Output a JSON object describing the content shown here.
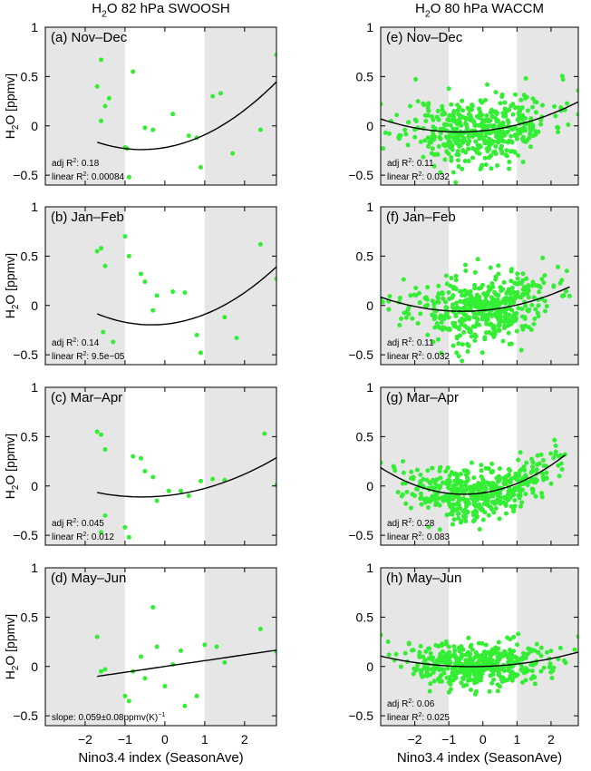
{
  "columns": [
    {
      "title_main": "H",
      "title_sub": "2",
      "title_rest": "O 82 hPa SWOOSH"
    },
    {
      "title_main": "H",
      "title_sub": "2",
      "title_rest": "O 80 hPa WACCM"
    }
  ],
  "ylabel_main": "H",
  "ylabel_sub": "2",
  "ylabel_rest": "O [ppmv]",
  "xlabel": "Nino3.4 index (SeasonAve)",
  "chart_data": [
    {
      "type": "scatter",
      "label": "(a) Nov–Dec",
      "xlim": [
        -3,
        2.8
      ],
      "ylim": [
        -0.6,
        1
      ],
      "xticks": [
        -2,
        -1,
        0,
        1,
        2
      ],
      "yticks": [
        -0.5,
        0,
        0.5,
        1
      ],
      "shade": [
        [
          -3,
          -1
        ],
        [
          1,
          2.8
        ]
      ],
      "fit": {
        "a": 0.06,
        "b": 0.07,
        "c": -0.22
      },
      "annotations": [
        {
          "text": "adj R",
          "sup": "2",
          "rest": ": 0.18"
        },
        {
          "text": "linear R",
          "sup": "2",
          "rest": ": 0.00084"
        }
      ],
      "points": [
        [
          -1.6,
          0.67
        ],
        [
          -1.7,
          0.4
        ],
        [
          -1.5,
          0.2
        ],
        [
          -1.6,
          0.05
        ],
        [
          -1.4,
          0.28
        ],
        [
          -1.0,
          -0.22
        ],
        [
          -0.95,
          -0.23
        ],
        [
          -0.9,
          -0.52
        ],
        [
          -0.8,
          0.55
        ],
        [
          -0.5,
          -0.02
        ],
        [
          -0.3,
          -0.04
        ],
        [
          0.2,
          0.12
        ],
        [
          0.6,
          -0.1
        ],
        [
          0.8,
          -0.12
        ],
        [
          0.9,
          -0.42
        ],
        [
          1.2,
          0.3
        ],
        [
          1.4,
          0.33
        ],
        [
          1.7,
          -0.28
        ],
        [
          2.4,
          -0.04
        ],
        [
          2.8,
          0.72
        ]
      ]
    },
    {
      "type": "scatter",
      "label": "(e) Nov–Dec",
      "xlim": [
        -3,
        2.8
      ],
      "ylim": [
        -0.6,
        1
      ],
      "xticks": [
        -2,
        -1,
        0,
        1,
        2
      ],
      "yticks": [
        -0.5,
        0,
        0.5,
        1
      ],
      "shade": [
        [
          -3,
          -1
        ],
        [
          1,
          2.8
        ]
      ],
      "fit": {
        "a": 0.025,
        "b": 0.035,
        "c": -0.05
      },
      "annotations": [
        {
          "text": "adj R",
          "sup": "2",
          "rest": ": 0.11"
        },
        {
          "text": "linear R",
          "sup": "2",
          "rest": ": 0.032"
        }
      ],
      "cloud": {
        "n": 480,
        "seed": 11,
        "sigma": 0.17,
        "curve": {
          "a": 0.025,
          "b": 0.035,
          "c": -0.05
        }
      }
    },
    {
      "type": "scatter",
      "label": "(b) Jan–Feb",
      "xlim": [
        -3,
        2.8
      ],
      "ylim": [
        -0.6,
        1
      ],
      "xticks": [
        -2,
        -1,
        0,
        1,
        2
      ],
      "yticks": [
        -0.5,
        0,
        0.5,
        1
      ],
      "shade": [
        [
          -3,
          -1
        ],
        [
          1,
          2.8
        ]
      ],
      "fit": {
        "a": 0.06,
        "b": 0.04,
        "c": -0.19
      },
      "annotations": [
        {
          "text": "adj R",
          "sup": "2",
          "rest": ": 0.14"
        },
        {
          "text": "linear R",
          "sup": "2",
          "rest": ": 9.5e−05"
        }
      ],
      "points": [
        [
          -1.7,
          0.55
        ],
        [
          -1.6,
          0.58
        ],
        [
          -1.5,
          0.4
        ],
        [
          -1.55,
          -0.27
        ],
        [
          -1.3,
          -0.37
        ],
        [
          -1.0,
          0.7
        ],
        [
          -0.9,
          0.5
        ],
        [
          -0.6,
          0.32
        ],
        [
          -0.5,
          0.24
        ],
        [
          -0.3,
          -0.05
        ],
        [
          -0.2,
          0.1
        ],
        [
          0.2,
          0.14
        ],
        [
          0.5,
          0.13
        ],
        [
          0.8,
          -0.3
        ],
        [
          0.9,
          -0.48
        ],
        [
          1.5,
          -0.12
        ],
        [
          1.8,
          -0.33
        ],
        [
          2.4,
          0.62
        ],
        [
          2.8,
          0.27
        ]
      ]
    },
    {
      "type": "scatter",
      "label": "(f) Jan–Feb",
      "xlim": [
        -3,
        2.8
      ],
      "ylim": [
        -0.6,
        1
      ],
      "xticks": [
        -2,
        -1,
        0,
        1,
        2
      ],
      "yticks": [
        -0.5,
        0,
        0.5,
        1
      ],
      "shade": [
        [
          -3,
          -1
        ],
        [
          1,
          2.8
        ]
      ],
      "fit": {
        "a": 0.025,
        "b": 0.03,
        "c": -0.05
      },
      "annotations": [
        {
          "text": "adj R",
          "sup": "2",
          "rest": ": 0.11"
        },
        {
          "text": "linear R",
          "sup": "2",
          "rest": ": 0.032"
        }
      ],
      "cloud": {
        "n": 480,
        "seed": 23,
        "sigma": 0.17,
        "curve": {
          "a": 0.025,
          "b": 0.03,
          "c": -0.05
        }
      }
    },
    {
      "type": "scatter",
      "label": "(c) Mar–Apr",
      "xlim": [
        -3,
        2.8
      ],
      "ylim": [
        -0.6,
        1
      ],
      "xticks": [
        -2,
        -1,
        0,
        1,
        2
      ],
      "yticks": [
        -0.5,
        0,
        0.5,
        1
      ],
      "shade": [
        [
          -3,
          -1
        ],
        [
          1,
          2.8
        ]
      ],
      "fit": {
        "a": 0.035,
        "b": 0.04,
        "c": -0.1
      },
      "annotations": [
        {
          "text": "adj R",
          "sup": "2",
          "rest": ": 0.045"
        },
        {
          "text": "linear R",
          "sup": "2",
          "rest": ": 0.012"
        }
      ],
      "points": [
        [
          -1.7,
          0.55
        ],
        [
          -1.6,
          0.52
        ],
        [
          -1.5,
          0.37
        ],
        [
          -1.5,
          -0.3
        ],
        [
          -1.6,
          -0.47
        ],
        [
          -1.0,
          -0.42
        ],
        [
          -0.9,
          -0.52
        ],
        [
          -0.8,
          0.3
        ],
        [
          -0.6,
          0.28
        ],
        [
          -0.5,
          0.15
        ],
        [
          -0.3,
          0.09
        ],
        [
          -0.2,
          -0.15
        ],
        [
          0.1,
          -0.05
        ],
        [
          0.4,
          -0.05
        ],
        [
          0.6,
          -0.1
        ],
        [
          0.9,
          0.05
        ],
        [
          1.2,
          0.07
        ],
        [
          1.5,
          0.06
        ],
        [
          2.5,
          0.53
        ],
        [
          2.8,
          0.01
        ]
      ]
    },
    {
      "type": "scatter",
      "label": "(g) Mar–Apr",
      "xlim": [
        -3,
        2.8
      ],
      "ylim": [
        -0.6,
        1
      ],
      "xticks": [
        -2,
        -1,
        0,
        1,
        2
      ],
      "yticks": [
        -0.5,
        0,
        0.5,
        1
      ],
      "shade": [
        [
          -3,
          -1
        ],
        [
          1,
          2.8
        ]
      ],
      "fit": {
        "a": 0.045,
        "b": 0.05,
        "c": -0.07
      },
      "annotations": [
        {
          "text": "adj R",
          "sup": "2",
          "rest": ": 0.28"
        },
        {
          "text": "linear R",
          "sup": "2",
          "rest": ": 0.083"
        }
      ],
      "cloud": {
        "n": 480,
        "seed": 37,
        "sigma": 0.13,
        "curve": {
          "a": 0.045,
          "b": 0.05,
          "c": -0.07
        }
      }
    },
    {
      "type": "scatter",
      "label": "(d) May–Jun",
      "xlim": [
        -3,
        2.8
      ],
      "ylim": [
        -0.6,
        1
      ],
      "xticks": [
        -2,
        -1,
        0,
        1,
        2
      ],
      "yticks": [
        -0.5,
        0,
        0.5,
        1
      ],
      "shade": [
        [
          -3,
          -1
        ],
        [
          1,
          2.8
        ]
      ],
      "fit": {
        "a": 0,
        "b": 0.059,
        "c": 0.0
      },
      "annotations": [
        {
          "text": "slope: 0.059±0.08ppmv(K)",
          "sup": "−1",
          "rest": ""
        }
      ],
      "points": [
        [
          -1.7,
          0.3
        ],
        [
          -1.6,
          -0.05
        ],
        [
          -1.5,
          -0.03
        ],
        [
          -1.0,
          -0.3
        ],
        [
          -0.9,
          -0.35
        ],
        [
          -0.8,
          -0.05
        ],
        [
          -0.6,
          0.1
        ],
        [
          -0.5,
          -0.12
        ],
        [
          -0.3,
          0.6
        ],
        [
          -0.2,
          0.2
        ],
        [
          0.0,
          -0.2
        ],
        [
          0.2,
          0.02
        ],
        [
          0.4,
          0.16
        ],
        [
          0.5,
          -0.4
        ],
        [
          0.8,
          -0.3
        ],
        [
          1.0,
          0.22
        ],
        [
          1.3,
          0.2
        ],
        [
          1.5,
          0.04
        ],
        [
          2.4,
          0.38
        ],
        [
          2.8,
          0.15
        ]
      ]
    },
    {
      "type": "scatter",
      "label": "(h) May–Jun",
      "xlim": [
        -3,
        2.8
      ],
      "ylim": [
        -0.6,
        1
      ],
      "xticks": [
        -2,
        -1,
        0,
        1,
        2
      ],
      "yticks": [
        -0.5,
        0,
        0.5,
        1
      ],
      "shade": [
        [
          -3,
          -1
        ],
        [
          1,
          2.8
        ]
      ],
      "fit": {
        "a": 0.015,
        "b": 0.01,
        "c": 0.0
      },
      "annotations": [
        {
          "text": "adj R",
          "sup": "2",
          "rest": ": 0.06"
        },
        {
          "text": "linear R",
          "sup": "2",
          "rest": ": 0.025"
        }
      ],
      "cloud": {
        "n": 480,
        "seed": 51,
        "sigma": 0.11,
        "curve": {
          "a": 0.015,
          "b": 0.01,
          "c": 0.0
        }
      }
    }
  ],
  "colors": {
    "marker": "#33ee33",
    "shade": "#e6e6e6",
    "fit": "#000000"
  }
}
